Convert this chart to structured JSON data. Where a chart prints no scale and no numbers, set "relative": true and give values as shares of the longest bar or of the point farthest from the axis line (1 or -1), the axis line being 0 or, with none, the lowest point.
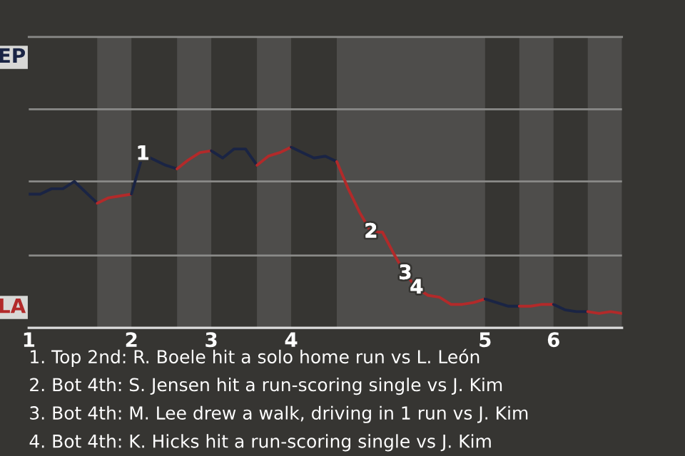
{
  "chart_data": {
    "type": "line",
    "relative": true,
    "categories": [
      "1",
      null,
      null,
      null,
      null,
      null,
      null,
      null,
      null,
      "2",
      null,
      null,
      null,
      null,
      null,
      null,
      "3",
      null,
      null,
      null,
      null,
      null,
      null,
      "4",
      null,
      null,
      null,
      null,
      null,
      null,
      null,
      null,
      null,
      null,
      null,
      null,
      null,
      null,
      null,
      null,
      "5",
      null,
      null,
      null,
      null,
      null,
      "6",
      null,
      null,
      null,
      null,
      null,
      null
    ],
    "ref_lines": [
      {
        "axis": "y",
        "value": 0.4,
        "color": "#8a8a88"
      },
      {
        "axis": "y",
        "value": 0.81,
        "color": "#8a8a88"
      },
      {
        "axis": "y",
        "value": 1.21,
        "color": "#8a8a88"
      }
    ],
    "series": [
      {
        "name": "EP",
        "color": "#1a2444",
        "values": [
          0.74,
          0.74,
          0.77,
          0.77,
          0.81,
          0.75,
          0.69,
          null,
          null,
          null,
          null,
          null,
          null,
          null,
          null,
          null,
          null,
          null,
          null,
          null,
          null,
          null,
          null,
          null,
          null,
          null,
          null,
          null,
          null,
          null,
          null,
          null,
          null,
          null,
          null,
          null,
          null,
          null,
          null,
          null,
          null,
          null,
          null,
          null,
          null,
          null,
          null,
          null,
          null,
          null,
          null,
          null,
          null
        ]
      },
      {
        "name": "LA",
        "color": "#b22a2a",
        "values": [
          null,
          null,
          null,
          null,
          null,
          null,
          0.69,
          0.72,
          0.73,
          0.74,
          null,
          null,
          null,
          null,
          null,
          null,
          null,
          null,
          null,
          null,
          null,
          null,
          null,
          null,
          null,
          null,
          null,
          null,
          null,
          null,
          null,
          null,
          null,
          null,
          null,
          null,
          null,
          null,
          null,
          null,
          null,
          null,
          null,
          null,
          null,
          null,
          null,
          null,
          null,
          null,
          null,
          null,
          null
        ]
      },
      {
        "color": "#1a2444",
        "values": [
          null,
          null,
          null,
          null,
          null,
          null,
          null,
          null,
          null,
          0.74,
          0.96,
          0.93,
          0.9,
          0.88,
          null,
          null,
          null,
          null,
          null,
          null,
          null,
          null,
          null,
          null,
          null,
          null,
          null,
          null,
          null,
          null,
          null,
          null,
          null,
          null,
          null,
          null,
          null,
          null,
          null,
          null,
          null,
          null,
          null,
          null,
          null,
          null,
          null,
          null,
          null,
          null,
          null,
          null,
          null
        ]
      },
      {
        "color": "#b22a2a",
        "values": [
          null,
          null,
          null,
          null,
          null,
          null,
          null,
          null,
          null,
          null,
          null,
          null,
          null,
          0.88,
          0.93,
          0.97,
          0.98,
          null,
          null,
          null,
          null,
          null,
          null,
          null,
          null,
          null,
          null,
          null,
          null,
          null,
          null,
          null,
          null,
          null,
          null,
          null,
          null,
          null,
          null,
          null,
          null,
          null,
          null,
          null,
          null,
          null,
          null,
          null,
          null,
          null,
          null,
          null,
          null
        ]
      },
      {
        "color": "#1a2444",
        "values": [
          null,
          null,
          null,
          null,
          null,
          null,
          null,
          null,
          null,
          null,
          null,
          null,
          null,
          null,
          null,
          null,
          0.98,
          0.94,
          0.99,
          0.99,
          0.9,
          null,
          null,
          null,
          null,
          null,
          null,
          null,
          null,
          null,
          null,
          null,
          null,
          null,
          null,
          null,
          null,
          null,
          null,
          null,
          null,
          null,
          null,
          null,
          null,
          null,
          null,
          null,
          null,
          null,
          null,
          null,
          null
        ]
      },
      {
        "color": "#b22a2a",
        "values": [
          null,
          null,
          null,
          null,
          null,
          null,
          null,
          null,
          null,
          null,
          null,
          null,
          null,
          null,
          null,
          null,
          null,
          null,
          null,
          null,
          0.9,
          0.95,
          0.97,
          1,
          null,
          null,
          null,
          null,
          null,
          null,
          null,
          null,
          null,
          null,
          null,
          null,
          null,
          null,
          null,
          null,
          null,
          null,
          null,
          null,
          null,
          null,
          null,
          null,
          null,
          null,
          null,
          null,
          null
        ]
      },
      {
        "color": "#1a2444",
        "values": [
          null,
          null,
          null,
          null,
          null,
          null,
          null,
          null,
          null,
          null,
          null,
          null,
          null,
          null,
          null,
          null,
          null,
          null,
          null,
          null,
          null,
          null,
          null,
          1,
          0.97,
          0.94,
          0.95,
          0.92,
          null,
          null,
          null,
          null,
          null,
          null,
          null,
          null,
          null,
          null,
          null,
          null,
          null,
          null,
          null,
          null,
          null,
          null,
          null,
          null,
          null,
          null,
          null,
          null,
          null
        ]
      },
      {
        "color": "#b22a2a",
        "values": [
          null,
          null,
          null,
          null,
          null,
          null,
          null,
          null,
          null,
          null,
          null,
          null,
          null,
          null,
          null,
          null,
          null,
          null,
          null,
          null,
          null,
          null,
          null,
          null,
          null,
          null,
          null,
          0.92,
          0.77,
          0.64,
          0.53,
          0.53,
          0.41,
          0.3,
          0.22,
          0.18,
          0.17,
          0.13,
          0.13,
          0.14,
          0.16,
          null,
          null,
          null,
          null,
          null,
          null,
          null,
          null,
          null,
          null,
          null,
          null
        ]
      },
      {
        "color": "#1a2444",
        "values": [
          null,
          null,
          null,
          null,
          null,
          null,
          null,
          null,
          null,
          null,
          null,
          null,
          null,
          null,
          null,
          null,
          null,
          null,
          null,
          null,
          null,
          null,
          null,
          null,
          null,
          null,
          null,
          null,
          null,
          null,
          null,
          null,
          null,
          null,
          null,
          null,
          null,
          null,
          null,
          null,
          0.16,
          0.14,
          0.12,
          0.12,
          null,
          null,
          null,
          null,
          null,
          null,
          null,
          null,
          null
        ]
      },
      {
        "color": "#b22a2a",
        "values": [
          null,
          null,
          null,
          null,
          null,
          null,
          null,
          null,
          null,
          null,
          null,
          null,
          null,
          null,
          null,
          null,
          null,
          null,
          null,
          null,
          null,
          null,
          null,
          null,
          null,
          null,
          null,
          null,
          null,
          null,
          null,
          null,
          null,
          null,
          null,
          null,
          null,
          null,
          null,
          null,
          null,
          null,
          null,
          0.12,
          0.12,
          0.13,
          0.13,
          null,
          null,
          null,
          null,
          null,
          null
        ]
      },
      {
        "color": "#1a2444",
        "values": [
          null,
          null,
          null,
          null,
          null,
          null,
          null,
          null,
          null,
          null,
          null,
          null,
          null,
          null,
          null,
          null,
          null,
          null,
          null,
          null,
          null,
          null,
          null,
          null,
          null,
          null,
          null,
          null,
          null,
          null,
          null,
          null,
          null,
          null,
          null,
          null,
          null,
          null,
          null,
          null,
          null,
          null,
          null,
          null,
          null,
          null,
          0.13,
          0.1,
          0.09,
          0.09,
          null,
          null,
          null
        ]
      },
      {
        "color": "#b22a2a",
        "values": [
          null,
          null,
          null,
          null,
          null,
          null,
          null,
          null,
          null,
          null,
          null,
          null,
          null,
          null,
          null,
          null,
          null,
          null,
          null,
          null,
          null,
          null,
          null,
          null,
          null,
          null,
          null,
          null,
          null,
          null,
          null,
          null,
          null,
          null,
          null,
          null,
          null,
          null,
          null,
          null,
          null,
          null,
          null,
          null,
          null,
          null,
          null,
          null,
          null,
          0.09,
          0.08,
          0.09,
          0.08
        ]
      }
    ],
    "annotations": [
      {
        "text": "1",
        "y": 0.96
      },
      {
        "text": "2",
        "y": 0.53
      },
      {
        "text": "3",
        "y": 0.3
      },
      {
        "text": "4",
        "y": 0.22
      },
      "1. Top 2nd: R. Boele hit a solo home run vs L. León",
      "2. Bot 4th: S. Jensen hit a run-scoring single vs J. Kim",
      "3. Bot 4th: M. Lee drew a walk, driving in 1 run vs J. Kim",
      "4. Bot 4th: K. Hicks hit a run-scoring single vs J. Kim"
    ]
  }
}
